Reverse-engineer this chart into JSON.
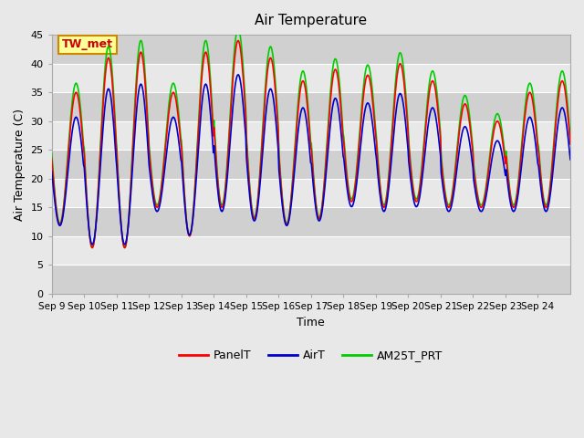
{
  "title": "Air Temperature",
  "ylabel": "Air Temperature (C)",
  "xlabel": "Time",
  "annotation": "TW_met",
  "annotation_color": "#cc0000",
  "annotation_bg": "#ffff99",
  "annotation_border": "#cc8800",
  "ylim": [
    0,
    45
  ],
  "yticks": [
    0,
    5,
    10,
    15,
    20,
    25,
    30,
    35,
    40,
    45
  ],
  "xtick_labels": [
    "Sep 9",
    "Sep 10",
    "Sep 11",
    "Sep 12",
    "Sep 13",
    "Sep 14",
    "Sep 15",
    "Sep 16",
    "Sep 17",
    "Sep 18",
    "Sep 19",
    "Sep 20",
    "Sep 21",
    "Sep 22",
    "Sep 23",
    "Sep 24"
  ],
  "legend_labels": [
    "PanelT",
    "AirT",
    "AM25T_PRT"
  ],
  "legend_colors": [
    "#ff0000",
    "#0000cc",
    "#00cc00"
  ],
  "line_width": 1.2,
  "bg_color": "#e8e8e8",
  "band_colors": [
    "#d0d0d0",
    "#e8e8e8"
  ],
  "day_mins": [
    12,
    8,
    8,
    15,
    10,
    15,
    13,
    12,
    13,
    16,
    15,
    16,
    15,
    15,
    15,
    15
  ],
  "day_maxs": [
    35,
    41,
    42,
    35,
    42,
    44,
    41,
    37,
    39,
    38,
    40,
    37,
    33,
    30,
    35,
    37
  ]
}
